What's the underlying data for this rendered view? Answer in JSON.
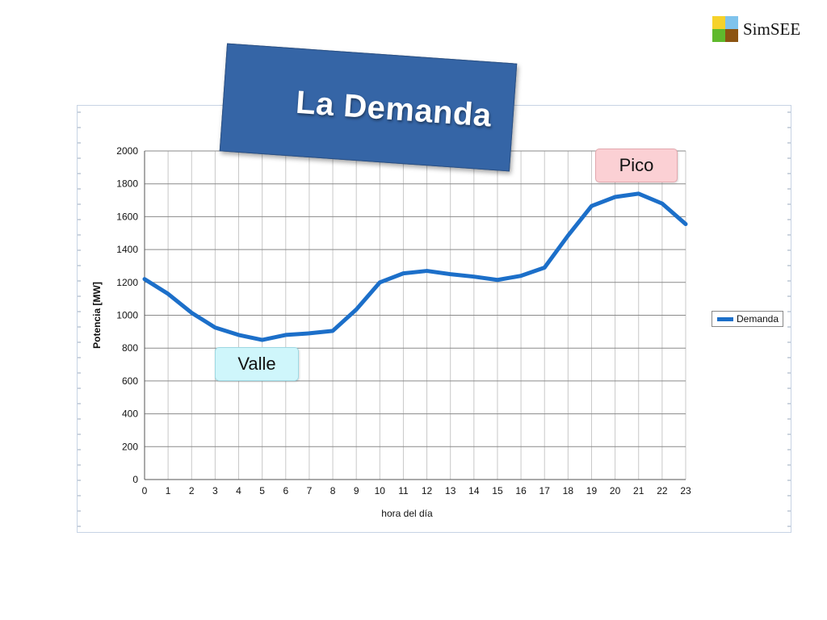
{
  "title": "La Demanda",
  "logo": {
    "text": "SimSEE",
    "colors": [
      "#f6d22a",
      "#7fc3ec",
      "#5fb92c",
      "#8c5412"
    ]
  },
  "callouts": {
    "pico": "Pico",
    "valle": "Valle"
  },
  "colors": {
    "series": "#1c6fc9",
    "banner": "#3565a6",
    "pico_bg": "#fbd0d4",
    "valle_bg": "#cff6fb"
  },
  "chart_data": {
    "type": "line",
    "xlabel": "hora del día",
    "ylabel": "Potencia [MW]",
    "ylim": [
      0,
      2000
    ],
    "yticks": [
      0,
      200,
      400,
      600,
      800,
      1000,
      1200,
      1400,
      1600,
      1800,
      2000
    ],
    "xlim": [
      0,
      23
    ],
    "x": [
      0,
      1,
      2,
      3,
      4,
      5,
      6,
      7,
      8,
      9,
      10,
      11,
      12,
      13,
      14,
      15,
      16,
      17,
      18,
      19,
      20,
      21,
      22,
      23
    ],
    "grid": true,
    "legend": "right",
    "series": [
      {
        "name": "Demanda",
        "values": [
          1220,
          1130,
          1015,
          925,
          880,
          850,
          880,
          890,
          905,
          1035,
          1200,
          1255,
          1270,
          1250,
          1235,
          1215,
          1240,
          1290,
          1485,
          1665,
          1720,
          1740,
          1680,
          1555
        ]
      }
    ]
  }
}
